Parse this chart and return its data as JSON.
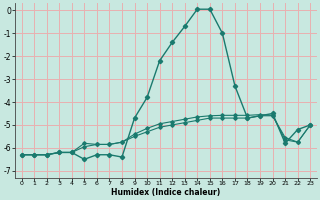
{
  "title": "",
  "xlabel": "Humidex (Indice chaleur)",
  "bg_color": "#c8e8e0",
  "grid_color": "#e8b0b0",
  "line_color": "#1a7a6e",
  "xlim": [
    -0.5,
    23.5
  ],
  "ylim": [
    -7.3,
    0.3
  ],
  "xticks": [
    0,
    1,
    2,
    3,
    4,
    5,
    6,
    7,
    8,
    9,
    10,
    11,
    12,
    13,
    14,
    15,
    16,
    17,
    18,
    19,
    20,
    21,
    22,
    23
  ],
  "yticks": [
    0,
    -1,
    -2,
    -3,
    -4,
    -5,
    -6,
    -7
  ],
  "curve1_x": [
    0,
    1,
    2,
    3,
    4,
    5,
    6,
    7,
    8,
    9,
    10,
    11,
    12,
    13,
    14,
    15,
    16,
    17,
    18,
    19,
    20,
    21,
    22,
    23
  ],
  "curve1_y": [
    -6.3,
    -6.3,
    -6.3,
    -6.2,
    -6.2,
    -6.5,
    -6.3,
    -6.3,
    -6.4,
    -4.7,
    -3.8,
    -2.2,
    -1.4,
    -0.7,
    0.05,
    0.05,
    -1.0,
    -3.3,
    -4.7,
    -4.6,
    -4.5,
    -5.8,
    -5.2,
    -5.0
  ],
  "curve2_x": [
    0,
    1,
    2,
    3,
    4,
    5,
    6,
    7,
    8,
    9,
    10,
    11,
    12,
    13,
    14,
    15,
    16,
    17,
    18,
    19,
    20,
    21,
    22,
    23
  ],
  "curve2_y": [
    -6.3,
    -6.3,
    -6.3,
    -6.2,
    -6.2,
    -5.8,
    -5.85,
    -5.85,
    -5.75,
    -5.5,
    -5.3,
    -5.1,
    -5.0,
    -4.9,
    -4.8,
    -4.7,
    -4.7,
    -4.7,
    -4.7,
    -4.6,
    -4.6,
    -5.55,
    -5.75,
    -5.0
  ],
  "curve3_x": [
    0,
    1,
    2,
    3,
    4,
    5,
    6,
    7,
    8,
    9,
    10,
    11,
    12,
    13,
    14,
    15,
    16,
    17,
    18,
    19,
    20,
    21,
    22,
    23
  ],
  "curve3_y": [
    -6.3,
    -6.3,
    -6.3,
    -6.2,
    -6.2,
    -5.95,
    -5.85,
    -5.85,
    -5.75,
    -5.4,
    -5.15,
    -4.95,
    -4.85,
    -4.75,
    -4.65,
    -4.6,
    -4.58,
    -4.58,
    -4.58,
    -4.55,
    -4.58,
    -5.65,
    -5.75,
    -5.0
  ]
}
